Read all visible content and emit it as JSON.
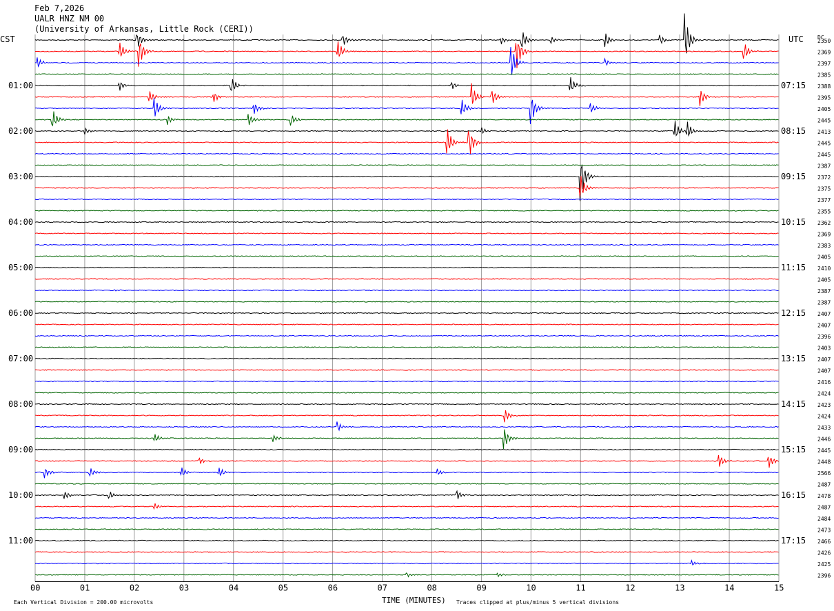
{
  "header": {
    "date": "Feb 7,2026",
    "station": "UALR HNZ NM 00",
    "network": "(University of Arkansas, Little Rock (CERI))"
  },
  "left_label": "CST",
  "right_label": "UTC",
  "dc_label": "DC",
  "footer": {
    "scale_note": "Each Vertical Division =  200.00 microvolts",
    "xlabel": "TIME (MINUTES)",
    "clip_note": "Traces clipped at plus/minus 5 vertical divisions"
  },
  "colors": {
    "cycle": [
      "#000000",
      "#ff0000",
      "#0000ff",
      "#006400"
    ],
    "grid": "#9a9a9a"
  },
  "chart_data": {
    "type": "line",
    "subtype": "helicorder",
    "x_range_minutes": [
      0,
      15
    ],
    "x_ticks": [
      "00",
      "01",
      "02",
      "03",
      "04",
      "05",
      "06",
      "07",
      "08",
      "09",
      "10",
      "11",
      "12",
      "13",
      "14",
      "15"
    ],
    "cst_hour_labels": [
      "01:00",
      "02:00",
      "03:00",
      "04:00",
      "05:00",
      "06:00",
      "07:00",
      "08:00",
      "09:00",
      "10:00",
      "11:00"
    ],
    "utc_hour_labels": [
      "07:15",
      "08:15",
      "09:15",
      "10:15",
      "11:15",
      "12:15",
      "13:15",
      "14:15",
      "15:15",
      "16:15",
      "17:15"
    ],
    "dc_values": [
      "2350",
      "2369",
      "2397",
      "2385",
      "2388",
      "2395",
      "2405",
      "2445",
      "2413",
      "2445",
      "2445",
      "2387",
      "2372",
      "2375",
      "2377",
      "2355",
      "2362",
      "2369",
      "2383",
      "2405",
      "2410",
      "2405",
      "2387",
      "2387",
      "2407",
      "2407",
      "2396",
      "2403",
      "2407",
      "2407",
      "2416",
      "2424",
      "2423",
      "2424",
      "2433",
      "2446",
      "2445",
      "2448",
      "2566",
      "2487",
      "2478",
      "2487",
      "2484",
      "2473",
      "2466",
      "2426",
      "2425",
      "2396"
    ],
    "rows": 48,
    "row_minutes": 15,
    "events": [
      {
        "row": 0,
        "min": 2.05,
        "amp": 14
      },
      {
        "row": 0,
        "min": 6.2,
        "amp": 10
      },
      {
        "row": 0,
        "min": 9.4,
        "amp": 6
      },
      {
        "row": 0,
        "min": 9.8,
        "amp": 18
      },
      {
        "row": 0,
        "min": 10.4,
        "amp": 6
      },
      {
        "row": 0,
        "min": 11.5,
        "amp": 12
      },
      {
        "row": 0,
        "min": 12.6,
        "amp": 8
      },
      {
        "row": 0,
        "min": 13.1,
        "amp": 40
      },
      {
        "row": 1,
        "min": 1.7,
        "amp": 14
      },
      {
        "row": 1,
        "min": 2.1,
        "amp": 22
      },
      {
        "row": 1,
        "min": 6.1,
        "amp": 16
      },
      {
        "row": 1,
        "min": 9.7,
        "amp": 30
      },
      {
        "row": 1,
        "min": 14.3,
        "amp": 14
      },
      {
        "row": 2,
        "min": 0.05,
        "amp": 8
      },
      {
        "row": 2,
        "min": 9.6,
        "amp": 26
      },
      {
        "row": 2,
        "min": 11.5,
        "amp": 6
      },
      {
        "row": 4,
        "min": 1.7,
        "amp": 8
      },
      {
        "row": 4,
        "min": 3.95,
        "amp": 14
      },
      {
        "row": 4,
        "min": 8.4,
        "amp": 6
      },
      {
        "row": 4,
        "min": 10.8,
        "amp": 12
      },
      {
        "row": 5,
        "min": 2.3,
        "amp": 10
      },
      {
        "row": 5,
        "min": 3.6,
        "amp": 8
      },
      {
        "row": 5,
        "min": 8.8,
        "amp": 20
      },
      {
        "row": 5,
        "min": 9.2,
        "amp": 14
      },
      {
        "row": 5,
        "min": 13.4,
        "amp": 16
      },
      {
        "row": 6,
        "min": 2.4,
        "amp": 18
      },
      {
        "row": 6,
        "min": 4.4,
        "amp": 10
      },
      {
        "row": 6,
        "min": 8.6,
        "amp": 14
      },
      {
        "row": 6,
        "min": 10.0,
        "amp": 24
      },
      {
        "row": 6,
        "min": 11.2,
        "amp": 8
      },
      {
        "row": 7,
        "min": 0.35,
        "amp": 16
      },
      {
        "row": 7,
        "min": 2.65,
        "amp": 10
      },
      {
        "row": 7,
        "min": 4.3,
        "amp": 10
      },
      {
        "row": 7,
        "min": 5.15,
        "amp": 10
      },
      {
        "row": 8,
        "min": 1.0,
        "amp": 6
      },
      {
        "row": 8,
        "min": 9.0,
        "amp": 6
      },
      {
        "row": 8,
        "min": 12.9,
        "amp": 16
      },
      {
        "row": 8,
        "min": 13.15,
        "amp": 14
      },
      {
        "row": 9,
        "min": 8.3,
        "amp": 24
      },
      {
        "row": 9,
        "min": 8.75,
        "amp": 24
      },
      {
        "row": 12,
        "min": 11.0,
        "amp": 36
      },
      {
        "row": 13,
        "min": 11.0,
        "amp": 20
      },
      {
        "row": 22,
        "min": 1.6,
        "amp": 2
      },
      {
        "row": 33,
        "min": 9.45,
        "amp": 14
      },
      {
        "row": 34,
        "min": 6.1,
        "amp": 8
      },
      {
        "row": 35,
        "min": 9.45,
        "amp": 18
      },
      {
        "row": 35,
        "min": 2.4,
        "amp": 8
      },
      {
        "row": 35,
        "min": 4.8,
        "amp": 6
      },
      {
        "row": 37,
        "min": 3.3,
        "amp": 6
      },
      {
        "row": 37,
        "min": 13.8,
        "amp": 10
      },
      {
        "row": 37,
        "min": 14.8,
        "amp": 10
      },
      {
        "row": 38,
        "min": 0.2,
        "amp": 8
      },
      {
        "row": 38,
        "min": 1.1,
        "amp": 8
      },
      {
        "row": 38,
        "min": 2.95,
        "amp": 8
      },
      {
        "row": 38,
        "min": 3.7,
        "amp": 8
      },
      {
        "row": 38,
        "min": 8.1,
        "amp": 6
      },
      {
        "row": 40,
        "min": 0.6,
        "amp": 6
      },
      {
        "row": 40,
        "min": 1.5,
        "amp": 6
      },
      {
        "row": 40,
        "min": 8.5,
        "amp": 8
      },
      {
        "row": 41,
        "min": 2.4,
        "amp": 6
      },
      {
        "row": 46,
        "min": 13.25,
        "amp": 4
      },
      {
        "row": 47,
        "min": 7.5,
        "amp": 4
      },
      {
        "row": 47,
        "min": 9.3,
        "amp": 4
      }
    ]
  }
}
